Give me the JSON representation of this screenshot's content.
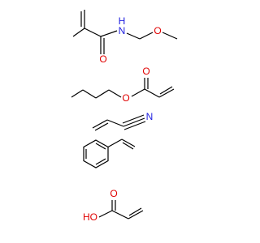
{
  "molecules": [
    {
      "labels": [
        "H",
        "N",
        "O",
        "O"
      ]
    },
    {
      "labels": [
        "O",
        "O"
      ]
    },
    {
      "labels": [
        "N"
      ]
    },
    {
      "labels": [
        "O",
        "HO"
      ]
    }
  ]
}
